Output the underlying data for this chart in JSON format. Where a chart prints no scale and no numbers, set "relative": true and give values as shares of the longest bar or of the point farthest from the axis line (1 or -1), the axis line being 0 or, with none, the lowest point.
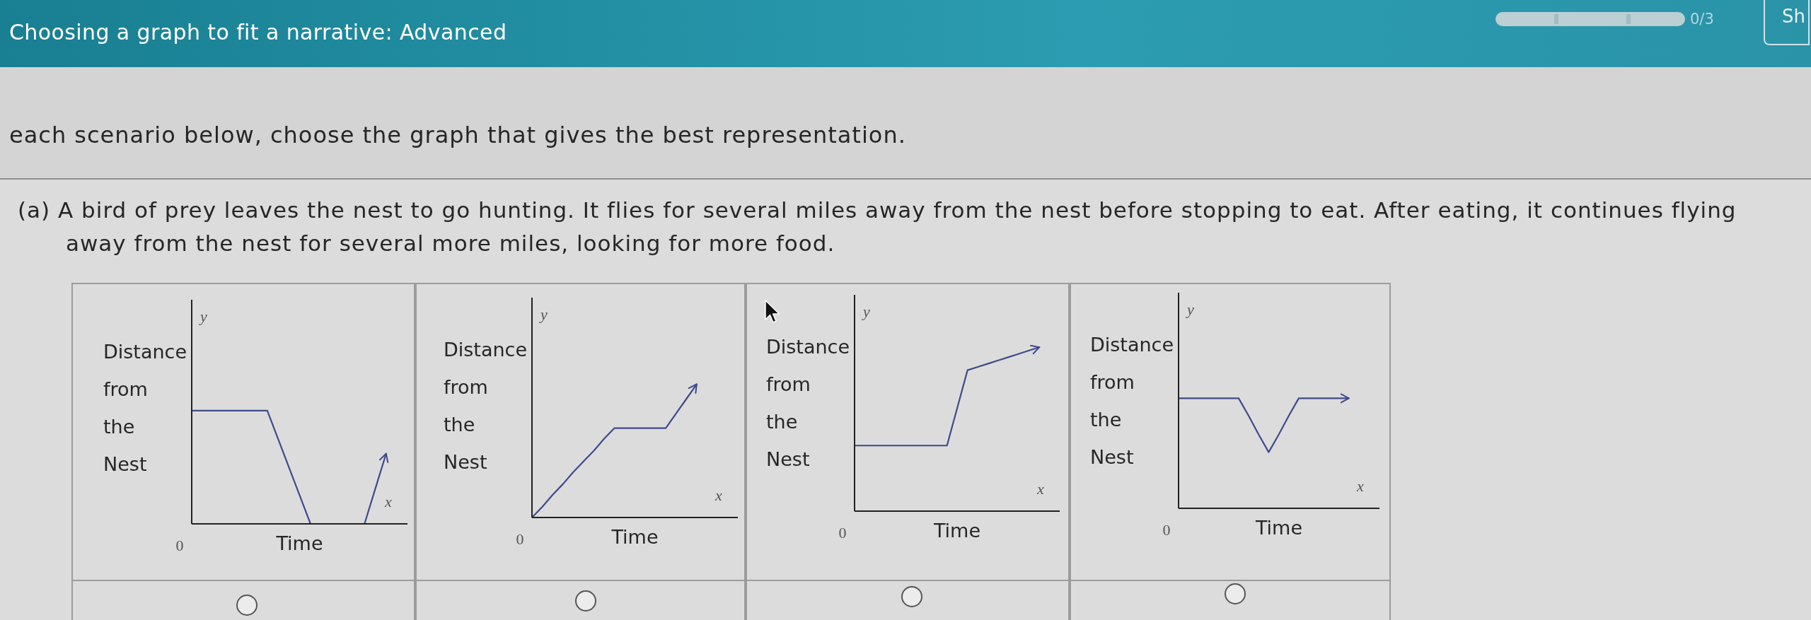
{
  "chart_data": [
    {
      "type": "other",
      "title": "Choosing a graph to fit a narrative: Advanced",
      "annotations": [
        "0/3",
        "Sh",
        "each scenario below, choose the graph that gives the best representation.",
        "(a) A bird of prey leaves the nest to go hunting. It flies for several miles away from the nest before stopping to eat. After eating, it continues flying away from the nest for several more miles, looking for more food."
      ]
    },
    {
      "type": "line",
      "relative": true,
      "xlabel": "Time",
      "ylabel": "Distance from the Nest",
      "annotations": [
        "y",
        "x",
        "0"
      ],
      "categories": [
        null,
        null,
        null,
        null,
        null,
        null,
        null,
        null,
        null,
        null,
        null,
        null,
        null,
        null,
        null,
        null,
        null,
        null,
        null
      ],
      "series": [
        {
          "color": "#3f4a8a",
          "values": [
            1,
            1,
            1,
            1,
            1,
            1,
            1,
            1,
            0.75,
            0.5,
            0.25,
            0,
            0,
            0,
            0,
            0,
            0,
            0.31,
            0.62
          ]
        }
      ]
    },
    {
      "type": "line",
      "relative": true,
      "xlabel": "Time",
      "ylabel": "Distance from the Nest",
      "annotations": [
        "y",
        "x",
        "0"
      ],
      "categories": [
        null,
        null,
        null,
        null,
        null,
        null,
        null,
        null,
        null,
        null,
        null,
        null,
        null,
        null,
        null,
        null,
        null
      ],
      "series": [
        {
          "color": "#3f4a8a",
          "values": [
            0,
            0.08,
            0.17,
            0.25,
            0.34,
            0.42,
            0.5,
            0.59,
            0.67,
            0.67,
            0.67,
            0.67,
            0.67,
            0.67,
            0.78,
            0.89,
            1
          ]
        }
      ]
    },
    {
      "type": "line",
      "relative": true,
      "xlabel": "Time",
      "ylabel": "Distance from the Nest",
      "annotations": [
        "y",
        "x",
        "0"
      ],
      "categories": [
        null,
        null,
        null,
        null,
        null,
        null,
        null,
        null,
        null,
        null,
        null,
        null,
        null,
        null,
        null,
        null,
        null,
        null,
        null
      ],
      "series": [
        {
          "color": "#3f4a8a",
          "values": [
            0.4,
            0.4,
            0.4,
            0.4,
            0.4,
            0.4,
            0.4,
            0.4,
            0.4,
            0.4,
            0.63,
            0.86,
            0.88,
            0.9,
            0.92,
            0.94,
            0.96,
            0.98,
            1
          ]
        }
      ]
    },
    {
      "type": "line",
      "relative": true,
      "xlabel": "Time",
      "ylabel": "Distance from the Nest",
      "annotations": [
        "y",
        "x",
        "0"
      ],
      "categories": [
        null,
        null,
        null,
        null,
        null,
        null,
        null,
        null,
        null,
        null,
        null,
        null,
        null,
        null,
        null,
        null,
        null,
        null
      ],
      "series": [
        {
          "color": "#3f4a8a",
          "values": [
            1,
            1,
            1,
            1,
            1,
            1,
            1,
            0.84,
            0.67,
            0.51,
            0.67,
            0.84,
            1,
            1,
            1,
            1,
            1,
            1
          ]
        }
      ]
    }
  ]
}
